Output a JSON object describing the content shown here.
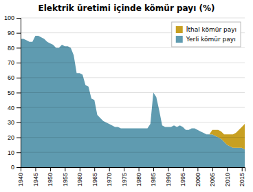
{
  "chart_data": {
    "type": "area",
    "stacked": true,
    "title": "Elektrik üretimi içinde kömür payı (%)",
    "x": [
      1940,
      1941,
      1942,
      1943,
      1944,
      1945,
      1946,
      1947,
      1948,
      1949,
      1950,
      1951,
      1952,
      1953,
      1954,
      1955,
      1956,
      1957,
      1958,
      1959,
      1960,
      1961,
      1962,
      1963,
      1964,
      1965,
      1966,
      1967,
      1968,
      1969,
      1970,
      1971,
      1972,
      1973,
      1974,
      1975,
      1976,
      1977,
      1978,
      1979,
      1980,
      1981,
      1982,
      1983,
      1984,
      1985,
      1986,
      1987,
      1988,
      1989,
      1990,
      1991,
      1992,
      1993,
      1994,
      1995,
      1996,
      1997,
      1998,
      1999,
      2000,
      2001,
      2002,
      2003,
      2004,
      2005,
      2006,
      2007,
      2008,
      2009,
      2010,
      2011,
      2012,
      2013,
      2014,
      2015,
      2016
    ],
    "series": [
      {
        "name": "Yerli kömür payı",
        "color": "#5f9bb0",
        "values": [
          86,
          86,
          85,
          84,
          84,
          88,
          88,
          87,
          86,
          84,
          83,
          82,
          80,
          80,
          82,
          81,
          81,
          80,
          75,
          63,
          63,
          62,
          55,
          54,
          46,
          45,
          35,
          33,
          31,
          30,
          29,
          28,
          27,
          27,
          26,
          26,
          26,
          26,
          26,
          26,
          26,
          26,
          26,
          26,
          29,
          50,
          47,
          38,
          28,
          27,
          27,
          27,
          28,
          27,
          28,
          27,
          25,
          25,
          26,
          26,
          25,
          24,
          23,
          22,
          22,
          22,
          21,
          20,
          19,
          17,
          15,
          14,
          13,
          13,
          13,
          13,
          12
        ]
      },
      {
        "name": "İthal kömür payı",
        "color": "#c8a022",
        "values": [
          0,
          0,
          0,
          0,
          0,
          0,
          0,
          0,
          0,
          0,
          0,
          0,
          0,
          0,
          0,
          0,
          0,
          0,
          0,
          0,
          0,
          0,
          0,
          0,
          0,
          0,
          0,
          0,
          0,
          0,
          0,
          0,
          0,
          0,
          0,
          0,
          0,
          0,
          0,
          0,
          0,
          0,
          0,
          0,
          0,
          0,
          0,
          0,
          0,
          0,
          0,
          0,
          0,
          0,
          0,
          0,
          0,
          0,
          0,
          0,
          0,
          0,
          0,
          0,
          0,
          3,
          4,
          5,
          5,
          5,
          7,
          8,
          9,
          10,
          12,
          14,
          17
        ]
      }
    ],
    "xlim": [
      1940,
      2016
    ],
    "xticks": [
      1940,
      1945,
      1950,
      1955,
      1960,
      1965,
      1970,
      1975,
      1980,
      1985,
      1990,
      1995,
      2000,
      2005,
      2010,
      2015
    ],
    "ylim": [
      0,
      100
    ],
    "yticks": [
      0,
      10,
      20,
      30,
      40,
      50,
      60,
      70,
      80,
      90,
      100
    ],
    "grid": true,
    "legend": "upper right"
  }
}
